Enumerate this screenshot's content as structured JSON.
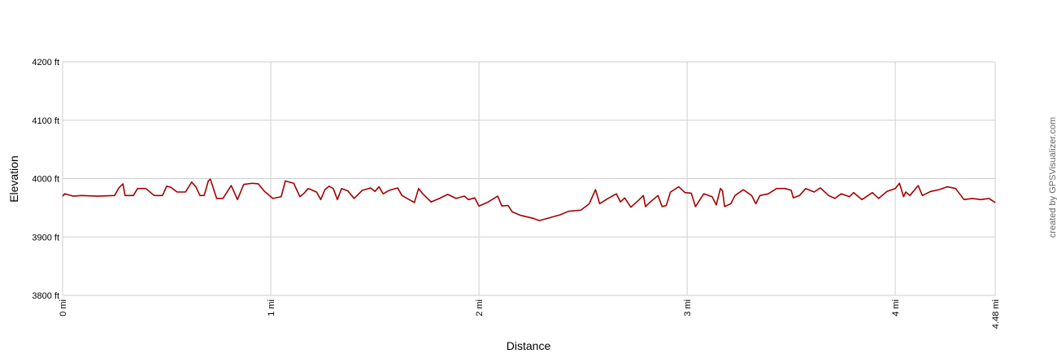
{
  "chart_data": {
    "type": "line",
    "x_label": "Distance",
    "y_label": "Elevation",
    "credit": "created by GPSVisualizer.com",
    "xlim": [
      0,
      4.48
    ],
    "ylim": [
      3800,
      4200
    ],
    "xticks": [
      {
        "value": 0,
        "label": "0 mi"
      },
      {
        "value": 1,
        "label": "1 mi"
      },
      {
        "value": 2,
        "label": "2 mi"
      },
      {
        "value": 3,
        "label": "3 mi"
      },
      {
        "value": 4,
        "label": "4 mi"
      },
      {
        "value": 4.48,
        "label": "4.48 mi"
      }
    ],
    "yticks": [
      {
        "value": 3800,
        "label": "3800 ft"
      },
      {
        "value": 3900,
        "label": "3900 ft"
      },
      {
        "value": 4000,
        "label": "4000 ft"
      },
      {
        "value": 4100,
        "label": "4100 ft"
      },
      {
        "value": 4200,
        "label": "4200 ft"
      }
    ],
    "grid": true,
    "x": [
      0,
      0.01,
      0.05,
      0.09,
      0.17,
      0.25,
      0.27,
      0.29,
      0.3,
      0.34,
      0.36,
      0.4,
      0.44,
      0.48,
      0.5,
      0.52,
      0.55,
      0.59,
      0.62,
      0.64,
      0.66,
      0.68,
      0.7,
      0.71,
      0.74,
      0.77,
      0.81,
      0.84,
      0.87,
      0.91,
      0.94,
      0.97,
      1.01,
      1.05,
      1.07,
      1.11,
      1.14,
      1.16,
      1.18,
      1.22,
      1.24,
      1.26,
      1.28,
      1.3,
      1.32,
      1.34,
      1.37,
      1.4,
      1.44,
      1.48,
      1.5,
      1.52,
      1.54,
      1.57,
      1.61,
      1.63,
      1.67,
      1.69,
      1.71,
      1.73,
      1.77,
      1.81,
      1.85,
      1.89,
      1.93,
      1.95,
      1.98,
      2.0,
      2.04,
      2.09,
      2.11,
      2.14,
      2.16,
      2.2,
      2.26,
      2.29,
      2.32,
      2.39,
      2.43,
      2.49,
      2.53,
      2.56,
      2.58,
      2.62,
      2.66,
      2.68,
      2.7,
      2.73,
      2.77,
      2.79,
      2.8,
      2.82,
      2.86,
      2.88,
      2.9,
      2.92,
      2.96,
      2.99,
      3.02,
      3.04,
      3.08,
      3.12,
      3.14,
      3.16,
      3.17,
      3.18,
      3.21,
      3.23,
      3.27,
      3.31,
      3.33,
      3.35,
      3.39,
      3.43,
      3.47,
      3.5,
      3.51,
      3.54,
      3.57,
      3.61,
      3.64,
      3.68,
      3.71,
      3.74,
      3.78,
      3.8,
      3.84,
      3.89,
      3.92,
      3.96,
      4.0,
      4.02,
      4.04,
      4.05,
      4.07,
      4.11,
      4.13,
      4.17,
      4.21,
      4.25,
      4.29,
      4.33,
      4.37,
      4.41,
      4.45,
      4.48
    ],
    "series": [
      {
        "name": "Elevation",
        "color": "#a30000",
        "values": [
          3970,
          3974,
          3970,
          3971,
          3970,
          3971,
          3984,
          3991,
          3971,
          3971,
          3983,
          3983,
          3971,
          3971,
          3987,
          3985,
          3977,
          3977,
          3994,
          3986,
          3971,
          3971,
          3996,
          3999,
          3966,
          3966,
          3988,
          3964,
          3990,
          3992,
          3991,
          3978,
          3966,
          3969,
          3996,
          3992,
          3969,
          3975,
          3983,
          3977,
          3964,
          3981,
          3987,
          3983,
          3964,
          3983,
          3979,
          3966,
          3980,
          3984,
          3978,
          3986,
          3974,
          3980,
          3984,
          3971,
          3963,
          3959,
          3983,
          3974,
          3960,
          3966,
          3973,
          3966,
          3970,
          3964,
          3967,
          3953,
          3959,
          3970,
          3953,
          3954,
          3943,
          3937,
          3932,
          3928,
          3931,
          3938,
          3944,
          3946,
          3957,
          3981,
          3957,
          3966,
          3974,
          3960,
          3967,
          3951,
          3964,
          3971,
          3952,
          3959,
          3971,
          3952,
          3954,
          3977,
          3986,
          3976,
          3975,
          3952,
          3974,
          3969,
          3955,
          3983,
          3979,
          3952,
          3957,
          3971,
          3981,
          3971,
          3957,
          3971,
          3974,
          3983,
          3983,
          3980,
          3967,
          3971,
          3983,
          3977,
          3984,
          3971,
          3966,
          3974,
          3969,
          3976,
          3964,
          3976,
          3966,
          3978,
          3983,
          3992,
          3969,
          3977,
          3971,
          3988,
          3971,
          3978,
          3981,
          3986,
          3983,
          3964,
          3966,
          3964,
          3966,
          3959
        ]
      }
    ]
  }
}
